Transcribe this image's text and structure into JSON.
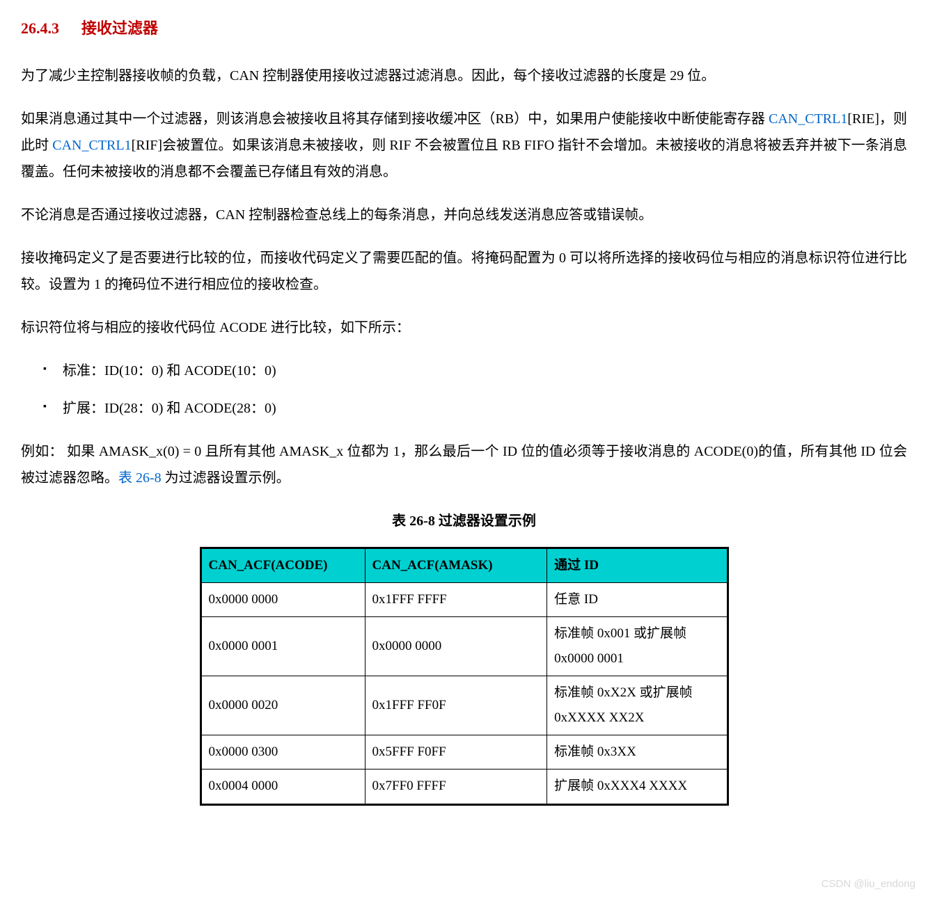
{
  "heading": {
    "number": "26.4.3",
    "title": "接收过滤器",
    "color": "#c00000"
  },
  "paragraphs": {
    "p1": "为了减少主控制器接收帧的负载，CAN 控制器使用接收过滤器过滤消息。因此，每个接收过滤器的长度是 29 位。",
    "p2_a": "如果消息通过其中一个过滤器，则该消息会被接收且将其存储到接收缓冲区（RB）中，如果用户使能接收中断使能寄存器 ",
    "p2_link1": "CAN_CTRL1",
    "p2_b": "[RIE]，则此时 ",
    "p2_link2": "CAN_CTRL1",
    "p2_c": "[RIF]会被置位。如果该消息未被接收，则 RIF 不会被置位且 RB FIFO 指针不会增加。未被接收的消息将被丢弃并被下一条消息覆盖。任何未被接收的消息都不会覆盖已存储且有效的消息。",
    "p3": "不论消息是否通过接收过滤器，CAN 控制器检查总线上的每条消息，并向总线发送消息应答或错误帧。",
    "p4": "接收掩码定义了是否要进行比较的位，而接收代码定义了需要匹配的值。将掩码配置为 0 可以将所选择的接收码位与相应的消息标识符位进行比较。设置为 1 的掩码位不进行相应位的接收检查。",
    "p5": "标识符位将与相应的接收代码位 ACODE 进行比较，如下所示：",
    "bullets": [
      "标准：ID(10：0) 和 ACODE(10：0)",
      "扩展：ID(28：0) 和 ACODE(28：0)"
    ],
    "p6_a": "例如： 如果 AMASK_x(0) = 0 且所有其他 AMASK_x 位都为 1，那么最后一个 ID 位的值必须等于接收消息的 ACODE(0)的值，所有其他 ID 位会被过滤器忽略。",
    "p6_ref": "表 26-8",
    "p6_b": " 为过滤器设置示例。"
  },
  "table": {
    "caption": "表 26-8 过滤器设置示例",
    "header_bg": "#00d0d0",
    "columns": [
      "CAN_ACF(ACODE)",
      "CAN_ACF(AMASK)",
      "通过 ID"
    ],
    "rows": [
      [
        "0x0000 0000",
        "0x1FFF FFFF",
        "任意 ID"
      ],
      [
        "0x0000 0001",
        "0x0000 0000",
        "标准帧 0x001 或扩展帧 0x0000 0001"
      ],
      [
        "0x0000 0020",
        "0x1FFF FF0F",
        "标准帧 0xX2X 或扩展帧 0xXXXX XX2X"
      ],
      [
        "0x0000 0300",
        "0x5FFF F0FF",
        "标准帧 0x3XX"
      ],
      [
        "0x0004 0000",
        "0x7FF0 FFFF",
        "扩展帧 0xXXX4 XXXX"
      ]
    ]
  },
  "watermark": "CSDN @liu_endong"
}
